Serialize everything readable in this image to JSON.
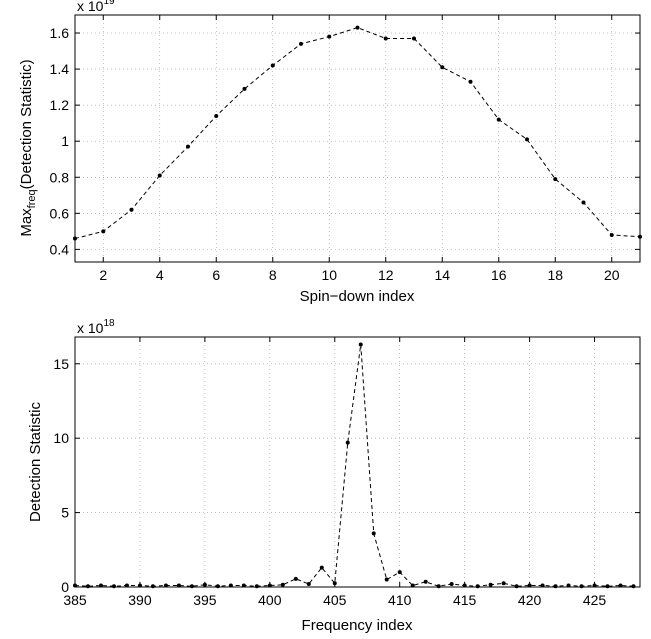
{
  "chart_data": [
    {
      "type": "line",
      "xlabel": "Spin−down index",
      "ylabel_main": "Max",
      "ylabel_sub": "freq",
      "ylabel_rest": "(Detection Statistic)",
      "exponent_base": "x 10",
      "exponent_power": "19",
      "xlim": [
        1,
        21
      ],
      "ylim": [
        0.33,
        1.7
      ],
      "grid": true,
      "line_style": "dashed",
      "marker": "dot",
      "xticks": [
        2,
        4,
        6,
        8,
        10,
        12,
        14,
        16,
        18,
        20
      ],
      "yticks": [
        0.4,
        0.6,
        0.8,
        1,
        1.2,
        1.4,
        1.6
      ],
      "ytick_labels": [
        "0.4",
        "0.6",
        "0.8",
        "1",
        "1.2",
        "1.4",
        "1.6"
      ],
      "x": [
        1,
        2,
        3,
        4,
        5,
        6,
        7,
        8,
        9,
        10,
        11,
        12,
        13,
        14,
        15,
        16,
        17,
        18,
        19,
        20,
        21
      ],
      "y": [
        0.46,
        0.5,
        0.62,
        0.81,
        0.97,
        1.14,
        1.29,
        1.42,
        1.54,
        1.58,
        1.63,
        1.57,
        1.57,
        1.41,
        1.33,
        1.12,
        1.01,
        0.79,
        0.66,
        0.48,
        0.47
      ]
    },
    {
      "type": "line",
      "xlabel": "Frequency index",
      "ylabel": "Detection Statistic",
      "exponent_base": "x 10",
      "exponent_power": "18",
      "xlim": [
        385,
        428.5
      ],
      "ylim": [
        0,
        16.8
      ],
      "grid": true,
      "line_style": "dashed",
      "marker": "dot",
      "xticks": [
        385,
        390,
        395,
        400,
        405,
        410,
        415,
        420,
        425
      ],
      "yticks": [
        0,
        5,
        10,
        15
      ],
      "ytick_labels": [
        "0",
        "5",
        "10",
        "15"
      ],
      "x": [
        385,
        386,
        387,
        388,
        389,
        390,
        391,
        392,
        393,
        394,
        395,
        396,
        397,
        398,
        399,
        400,
        401,
        402,
        403,
        404,
        405,
        406,
        407,
        408,
        409,
        410,
        411,
        412,
        413,
        414,
        415,
        416,
        417,
        418,
        419,
        420,
        421,
        422,
        423,
        424,
        425,
        426,
        427,
        428
      ],
      "y": [
        0.1,
        0.05,
        0.1,
        0.05,
        0.1,
        0.1,
        0.05,
        0.1,
        0.1,
        0.05,
        0.15,
        0.05,
        0.1,
        0.1,
        0.05,
        0.1,
        0.15,
        0.55,
        0.2,
        1.3,
        0.25,
        9.7,
        16.3,
        3.6,
        0.5,
        1.0,
        0.1,
        0.35,
        0.05,
        0.2,
        0.1,
        0.05,
        0.15,
        0.25,
        0.05,
        0.1,
        0.1,
        0.05,
        0.1,
        0.05,
        0.1,
        0.05,
        0.1,
        0.05
      ]
    }
  ]
}
